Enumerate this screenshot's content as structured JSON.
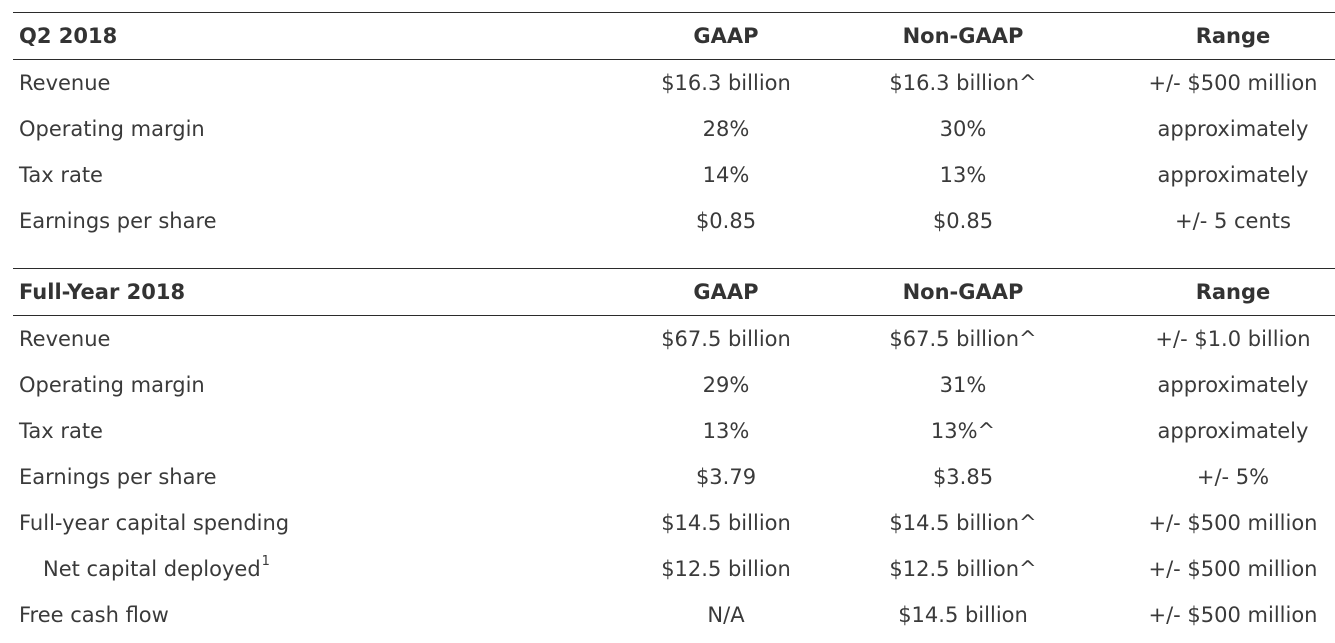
{
  "q2": {
    "header": {
      "period": "Q2 2018",
      "gaap": "GAAP",
      "nongaap": "Non-GAAP",
      "range": "Range"
    },
    "rows": [
      {
        "label": "Revenue",
        "gaap": "$16.3 billion",
        "nongaap": "$16.3 billion^",
        "range": "+/- $500 million"
      },
      {
        "label": "Operating margin",
        "gaap": "28%",
        "nongaap": "30%",
        "range": "approximately"
      },
      {
        "label": "Tax rate",
        "gaap": "14%",
        "nongaap": "13%",
        "range": "approximately"
      },
      {
        "label": "Earnings per share",
        "gaap": "$0.85",
        "nongaap": "$0.85",
        "range": "+/- 5 cents"
      }
    ]
  },
  "fy": {
    "header": {
      "period": "Full-Year 2018",
      "gaap": "GAAP",
      "nongaap": "Non-GAAP",
      "range": "Range"
    },
    "rows": [
      {
        "label": "Revenue",
        "gaap": "$67.5 billion",
        "nongaap": "$67.5 billion^",
        "range": "+/- $1.0 billion"
      },
      {
        "label": "Operating margin",
        "gaap": "29%",
        "nongaap": "31%",
        "range": "approximately"
      },
      {
        "label": "Tax rate",
        "gaap": "13%",
        "nongaap": "13%^",
        "range": "approximately"
      },
      {
        "label": "Earnings per share",
        "gaap": "$3.79",
        "nongaap": "$3.85",
        "range": "+/- 5%"
      },
      {
        "label": "Full-year capital spending",
        "gaap": "$14.5 billion",
        "nongaap": "$14.5 billion^",
        "range": "+/- $500 million"
      },
      {
        "label": "Net capital deployed",
        "footnote": "1",
        "gaap": "$12.5 billion",
        "nongaap": "$12.5 billion^",
        "range": "+/- $500 million"
      },
      {
        "label": "Free cash flow",
        "gaap": "N/A",
        "nongaap": "$14.5 billion",
        "range": "+/- $500 million"
      }
    ]
  }
}
